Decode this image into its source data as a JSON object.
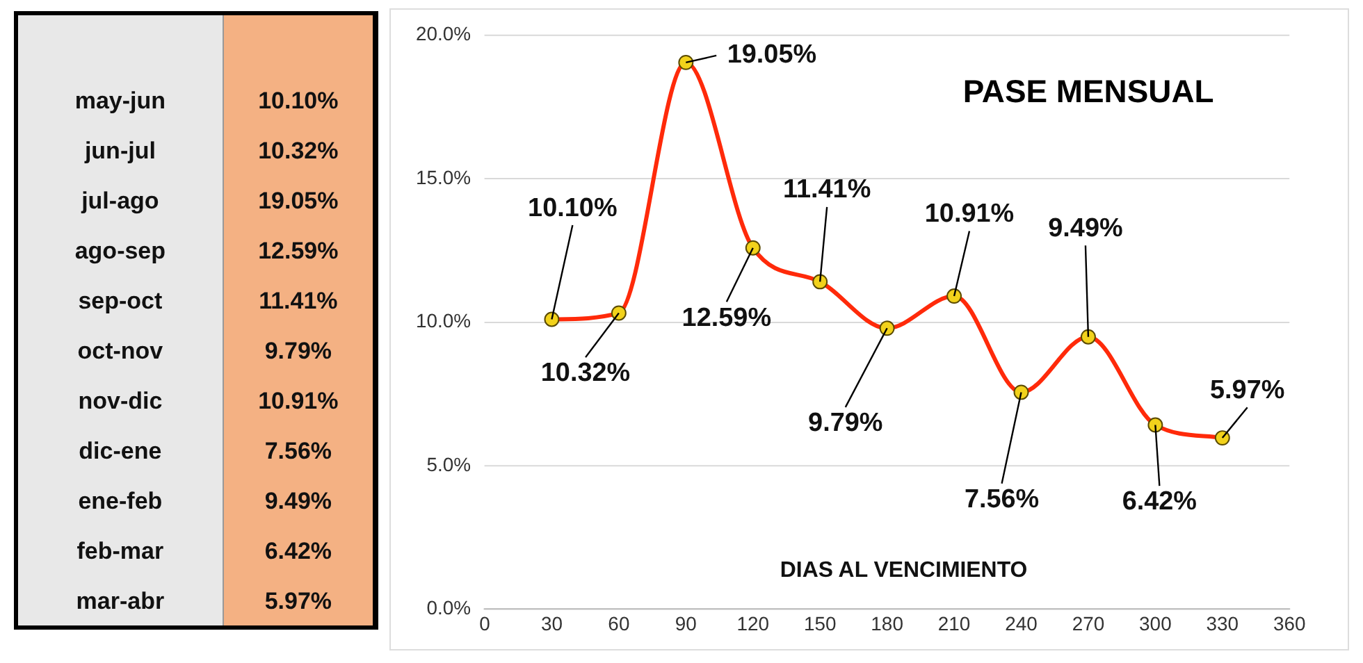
{
  "chart_data": [
    {
      "type": "other",
      "annotations": [
        "may-jun",
        "10.10%",
        "jun-jul",
        "10.32%",
        "jul-ago",
        "19.05%",
        "ago-sep",
        "12.59%",
        "sep-oct",
        "11.41%",
        "oct-nov",
        "9.79%",
        "nov-dic",
        "10.91%",
        "dic-ene",
        "7.56%",
        "ene-feb",
        "9.49%",
        "feb-mar",
        "6.42%",
        "mar-abr",
        "5.97%"
      ]
    },
    {
      "type": "line",
      "title": "PASE MENSUAL",
      "xlabel": "DIAS AL VENCIMIENTO",
      "x": [
        30,
        60,
        90,
        120,
        150,
        180,
        210,
        240,
        270,
        300,
        330
      ],
      "series": [
        {
          "color": "#ff2a0a",
          "values": [
            10.1,
            10.32,
            19.05,
            12.59,
            11.41,
            9.79,
            10.91,
            7.56,
            9.49,
            6.42,
            5.97
          ],
          "value_labels": [
            "10.10%",
            "10.32%",
            "19.05%",
            "12.59%",
            "11.41%",
            "9.79%",
            "10.91%",
            "7.56%",
            "9.49%",
            "6.42%",
            "5.97%"
          ]
        }
      ],
      "xlim": [
        0,
        360
      ],
      "xticks": [
        0,
        30,
        60,
        90,
        120,
        150,
        180,
        210,
        240,
        270,
        300,
        330,
        360
      ],
      "ylim": [
        0,
        20
      ],
      "yticks": [
        {
          "value": 0,
          "label": "0.0%"
        },
        {
          "value": 5,
          "label": "5.0%"
        },
        {
          "value": 10,
          "label": "10.0%"
        },
        {
          "value": 15,
          "label": "15.0%"
        },
        {
          "value": 20,
          "label": "20.0%"
        }
      ],
      "grid": "y",
      "marker": "circle",
      "line_style": "solid",
      "legend": false
    }
  ]
}
